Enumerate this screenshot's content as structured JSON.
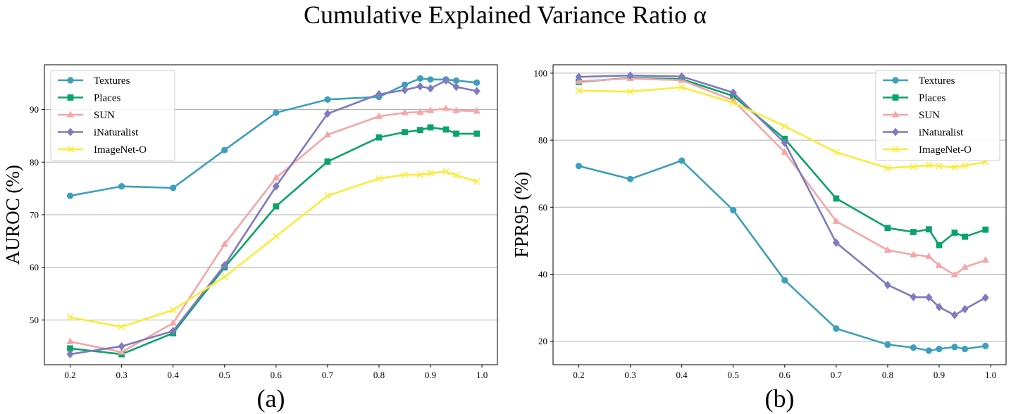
{
  "figure": {
    "title": "Cumulative Explained Variance Ratio α"
  },
  "chart_data": [
    {
      "type": "line",
      "panel_label": "(a)",
      "xlabel": "",
      "ylabel": "AUROC (%)",
      "xlim": [
        0.15,
        1.03
      ],
      "ylim": [
        41.5,
        98.5
      ],
      "xticks": [
        0.2,
        0.3,
        0.4,
        0.5,
        0.6,
        0.7,
        0.8,
        0.9,
        1.0
      ],
      "xtick_labels": [
        "0.2",
        "0.3",
        "0.4",
        "0.5",
        "0.6",
        "0.7",
        "0.8",
        "0.9",
        "1.0"
      ],
      "yticks": [
        50,
        60,
        70,
        80,
        90
      ],
      "ytick_labels": [
        "50",
        "60",
        "70",
        "80",
        "90"
      ],
      "grid": "horizontal",
      "legend_position": "top-left",
      "x": [
        0.2,
        0.3,
        0.4,
        0.5,
        0.6,
        0.7,
        0.8,
        0.85,
        0.88,
        0.9,
        0.93,
        0.95,
        0.99
      ],
      "series": [
        {
          "name": "Textures",
          "color": "#3e9fbd",
          "marker": "circle",
          "values": [
            73.6,
            75.4,
            75.1,
            82.3,
            89.4,
            91.9,
            92.4,
            94.7,
            95.9,
            95.7,
            95.7,
            95.5,
            95.1
          ]
        },
        {
          "name": "Places",
          "color": "#0aa36a",
          "marker": "square",
          "values": [
            44.6,
            43.5,
            47.5,
            60.0,
            71.6,
            80.1,
            84.7,
            85.7,
            86.1,
            86.6,
            86.2,
            85.4,
            85.4
          ]
        },
        {
          "name": "SUN",
          "color": "#f4a6a8",
          "marker": "triangle",
          "values": [
            45.9,
            43.9,
            49.4,
            64.4,
            77.0,
            85.2,
            88.7,
            89.4,
            89.5,
            89.8,
            90.2,
            89.8,
            89.7
          ]
        },
        {
          "name": "iNaturalist",
          "color": "#7e7bbe",
          "marker": "diamond",
          "values": [
            43.5,
            45.0,
            47.9,
            60.4,
            75.4,
            89.2,
            92.9,
            93.7,
            94.4,
            94.0,
            95.5,
            94.3,
            93.5
          ]
        },
        {
          "name": "ImageNet-O",
          "color": "#f8ec3a",
          "marker": "x",
          "values": [
            50.5,
            48.7,
            51.9,
            58.2,
            65.9,
            73.6,
            76.9,
            77.6,
            77.6,
            77.9,
            78.2,
            77.5,
            76.3
          ]
        }
      ]
    },
    {
      "type": "line",
      "panel_label": "(b)",
      "xlabel": "",
      "ylabel": "FPR95 (%)",
      "xlim": [
        0.15,
        1.03
      ],
      "ylim": [
        13,
        102.5
      ],
      "xticks": [
        0.2,
        0.3,
        0.4,
        0.5,
        0.6,
        0.7,
        0.8,
        0.9,
        1.0
      ],
      "xtick_labels": [
        "0.2",
        "0.3",
        "0.4",
        "0.5",
        "0.6",
        "0.7",
        "0.8",
        "0.9",
        "1.0"
      ],
      "yticks": [
        20,
        40,
        60,
        80,
        100
      ],
      "ytick_labels": [
        "20",
        "40",
        "60",
        "80",
        "100"
      ],
      "grid": "horizontal",
      "legend_position": "top-right",
      "x": [
        0.2,
        0.3,
        0.4,
        0.5,
        0.6,
        0.7,
        0.8,
        0.85,
        0.88,
        0.9,
        0.93,
        0.95,
        0.99
      ],
      "series": [
        {
          "name": "Textures",
          "color": "#3e9fbd",
          "marker": "circle",
          "values": [
            72.3,
            68.4,
            73.9,
            59.1,
            38.2,
            23.8,
            19.0,
            18.1,
            17.2,
            17.7,
            18.3,
            17.7,
            18.6
          ]
        },
        {
          "name": "Places",
          "color": "#0aa36a",
          "marker": "square",
          "values": [
            97.4,
            98.6,
            98.2,
            93.2,
            80.4,
            62.6,
            53.8,
            52.6,
            53.4,
            48.7,
            52.4,
            51.2,
            53.3
          ]
        },
        {
          "name": "SUN",
          "color": "#f4a6a8",
          "marker": "triangle",
          "values": [
            97.6,
            98.4,
            97.9,
            91.9,
            76.4,
            55.8,
            47.2,
            45.8,
            45.3,
            42.6,
            39.8,
            42.1,
            44.2
          ]
        },
        {
          "name": "iNaturalist",
          "color": "#7e7bbe",
          "marker": "diamond",
          "values": [
            98.9,
            99.3,
            99.0,
            94.2,
            79.2,
            49.4,
            36.8,
            33.2,
            33.1,
            30.2,
            27.8,
            29.6,
            33.0
          ]
        },
        {
          "name": "ImageNet-O",
          "color": "#f8ec3a",
          "marker": "x",
          "values": [
            94.8,
            94.5,
            95.8,
            91.2,
            84.2,
            76.4,
            71.7,
            72.1,
            72.5,
            72.3,
            71.9,
            72.4,
            73.5
          ]
        }
      ]
    }
  ]
}
